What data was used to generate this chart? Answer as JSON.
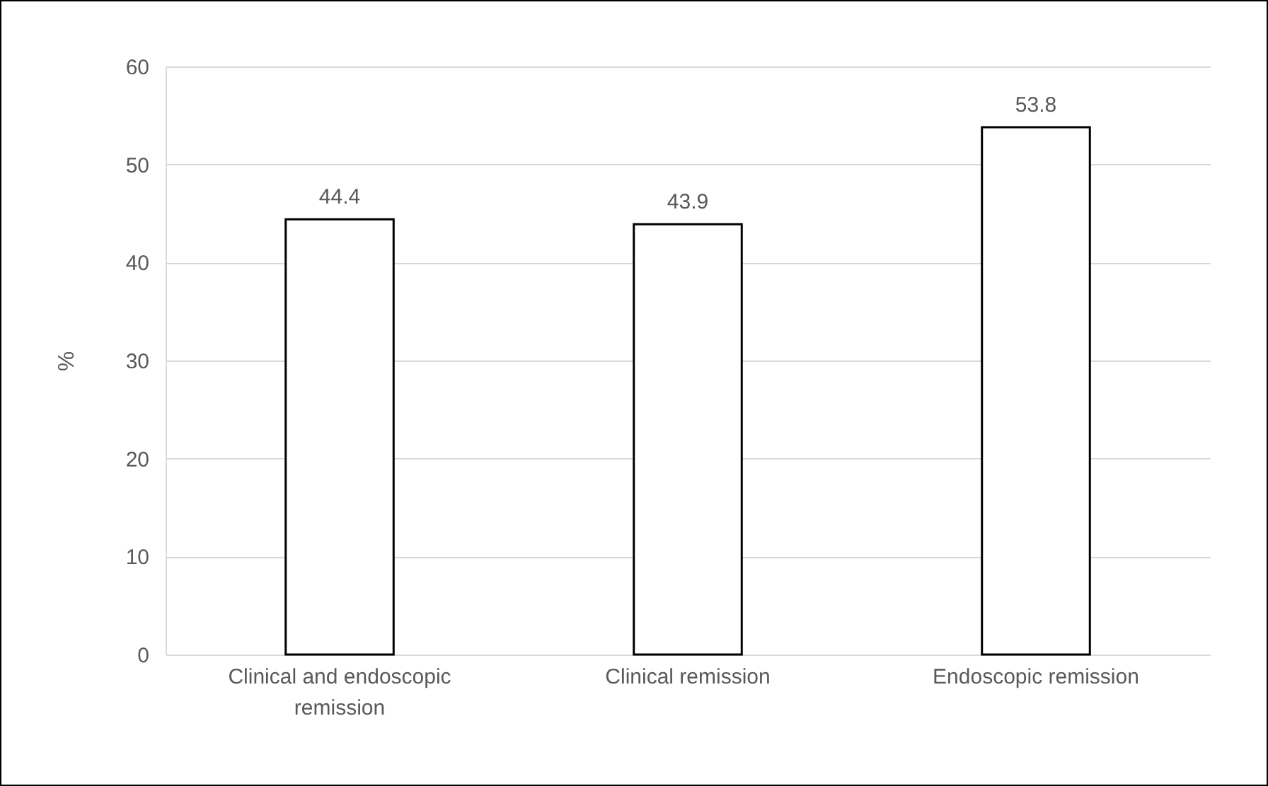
{
  "chart_data": {
    "type": "bar",
    "ylabel": "%",
    "categories": [
      "Clinical and endoscopic remission",
      "Clinical remission",
      "Endoscopic remission"
    ],
    "values": [
      44.4,
      43.9,
      53.8
    ],
    "color": "#ffffff",
    "ylim": [
      0,
      60
    ],
    "yticks": [
      0,
      10,
      20,
      30,
      40,
      50,
      60
    ],
    "grid": "y",
    "data_labels": true
  }
}
